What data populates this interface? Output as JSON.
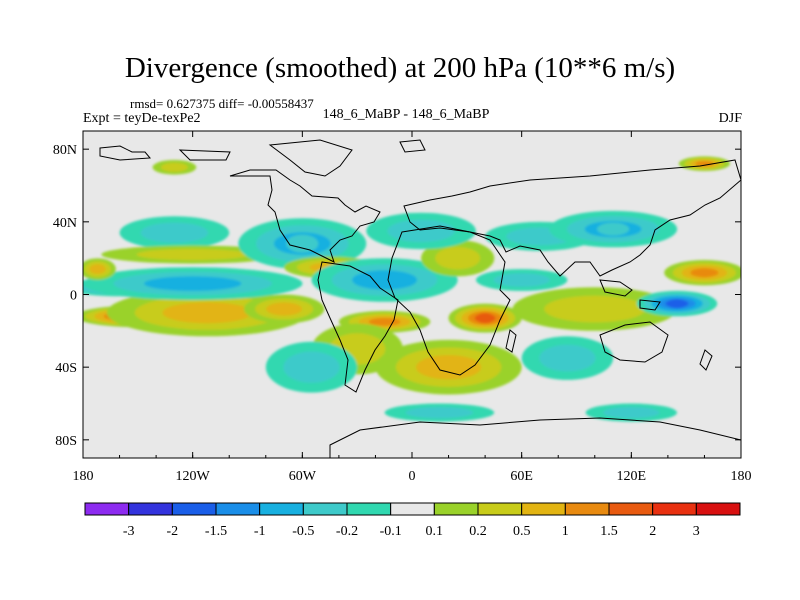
{
  "header": {
    "title": "Divergence (smoothed) at 200 hPa (10**6 m/s)",
    "stats": "rmsd= 0.627375 diff= -0.00558437",
    "experiment": "Expt = teyDe-texPe2",
    "runs": "148_6_MaBP - 148_6_MaBP",
    "season": "DJF"
  },
  "chart_data": {
    "type": "heatmap",
    "title": "Divergence (smoothed) at 200 hPa (10**6 m/s)",
    "xlabel": "",
    "ylabel": "",
    "x_range": [
      -180,
      180
    ],
    "y_range": [
      -90,
      90
    ],
    "x_ticks": [
      {
        "value": -180,
        "label": "180"
      },
      {
        "value": -120,
        "label": "120W"
      },
      {
        "value": -60,
        "label": "60W"
      },
      {
        "value": 0,
        "label": "0"
      },
      {
        "value": 60,
        "label": "60E"
      },
      {
        "value": 120,
        "label": "120E"
      },
      {
        "value": 180,
        "label": "180"
      }
    ],
    "y_ticks": [
      {
        "value": 80,
        "label": "80N"
      },
      {
        "value": 40,
        "label": "40N"
      },
      {
        "value": 0,
        "label": "0"
      },
      {
        "value": -40,
        "label": "40S"
      },
      {
        "value": -80,
        "label": "80S"
      }
    ],
    "levels": [
      "-3",
      "-2",
      "-1.5",
      "-1",
      "-0.5",
      "-0.2",
      "-0.1",
      "0.1",
      "0.2",
      "0.5",
      "1",
      "1.5",
      "2",
      "3"
    ],
    "colors": [
      "#8d2bf0",
      "#3333dd",
      "#1a5ee8",
      "#1a8ee8",
      "#18b0e0",
      "#3ecaca",
      "#30d8b0",
      "#e8e8e8",
      "#9ad22a",
      "#c8cc1a",
      "#e2b412",
      "#e88a10",
      "#e85a10",
      "#e83010",
      "#d81010"
    ],
    "features": [
      {
        "lon": -150,
        "lat": -12,
        "rx": 34,
        "ry": 6,
        "value": 2.2
      },
      {
        "lon": -112,
        "lat": -10,
        "rx": 55,
        "ry": 13,
        "value": 0.8
      },
      {
        "lon": -160,
        "lat": 4,
        "rx": 30,
        "ry": 5,
        "value": -1.2
      },
      {
        "lon": -120,
        "lat": 6,
        "rx": 60,
        "ry": 9,
        "value": -0.6
      },
      {
        "lon": -172,
        "lat": 14,
        "rx": 10,
        "ry": 6,
        "value": 0.8
      },
      {
        "lon": -130,
        "lat": 34,
        "rx": 30,
        "ry": 9,
        "value": -0.3
      },
      {
        "lon": -120,
        "lat": 22,
        "rx": 50,
        "ry": 5,
        "value": 0.3
      },
      {
        "lon": -60,
        "lat": 28,
        "rx": 35,
        "ry": 14,
        "value": -0.5
      },
      {
        "lon": -45,
        "lat": 15,
        "rx": 25,
        "ry": 6,
        "value": 0.5
      },
      {
        "lon": -70,
        "lat": -8,
        "rx": 22,
        "ry": 8,
        "value": 0.8
      },
      {
        "lon": -15,
        "lat": 8,
        "rx": 40,
        "ry": 12,
        "value": -0.6
      },
      {
        "lon": -15,
        "lat": -15,
        "rx": 25,
        "ry": 6,
        "value": 1.1
      },
      {
        "lon": -30,
        "lat": -30,
        "rx": 25,
        "ry": 14,
        "value": 0.3
      },
      {
        "lon": -55,
        "lat": -40,
        "rx": 25,
        "ry": 14,
        "value": -0.3
      },
      {
        "lon": 40,
        "lat": -13,
        "rx": 20,
        "ry": 8,
        "value": 1.8
      },
      {
        "lon": 20,
        "lat": -40,
        "rx": 40,
        "ry": 15,
        "value": 0.5
      },
      {
        "lon": 25,
        "lat": 20,
        "rx": 20,
        "ry": 10,
        "value": 0.4
      },
      {
        "lon": 5,
        "lat": 35,
        "rx": 30,
        "ry": 10,
        "value": -0.3
      },
      {
        "lon": 70,
        "lat": 32,
        "rx": 30,
        "ry": 8,
        "value": -0.4
      },
      {
        "lon": 60,
        "lat": 8,
        "rx": 25,
        "ry": 6,
        "value": -0.3
      },
      {
        "lon": 100,
        "lat": -8,
        "rx": 45,
        "ry": 12,
        "value": 0.4
      },
      {
        "lon": 145,
        "lat": -5,
        "rx": 22,
        "ry": 7,
        "value": -1.8
      },
      {
        "lon": 110,
        "lat": 36,
        "rx": 35,
        "ry": 10,
        "value": -0.5
      },
      {
        "lon": 160,
        "lat": 12,
        "rx": 22,
        "ry": 7,
        "value": 1.2
      },
      {
        "lon": 85,
        "lat": -35,
        "rx": 25,
        "ry": 12,
        "value": -0.4
      },
      {
        "lon": -130,
        "lat": 70,
        "rx": 12,
        "ry": 4,
        "value": 0.3
      },
      {
        "lon": 160,
        "lat": 72,
        "rx": 14,
        "ry": 4,
        "value": 1.2
      },
      {
        "lon": 15,
        "lat": -65,
        "rx": 30,
        "ry": 5,
        "value": -0.3
      },
      {
        "lon": 120,
        "lat": -65,
        "rx": 25,
        "ry": 5,
        "value": -0.3
      }
    ]
  }
}
